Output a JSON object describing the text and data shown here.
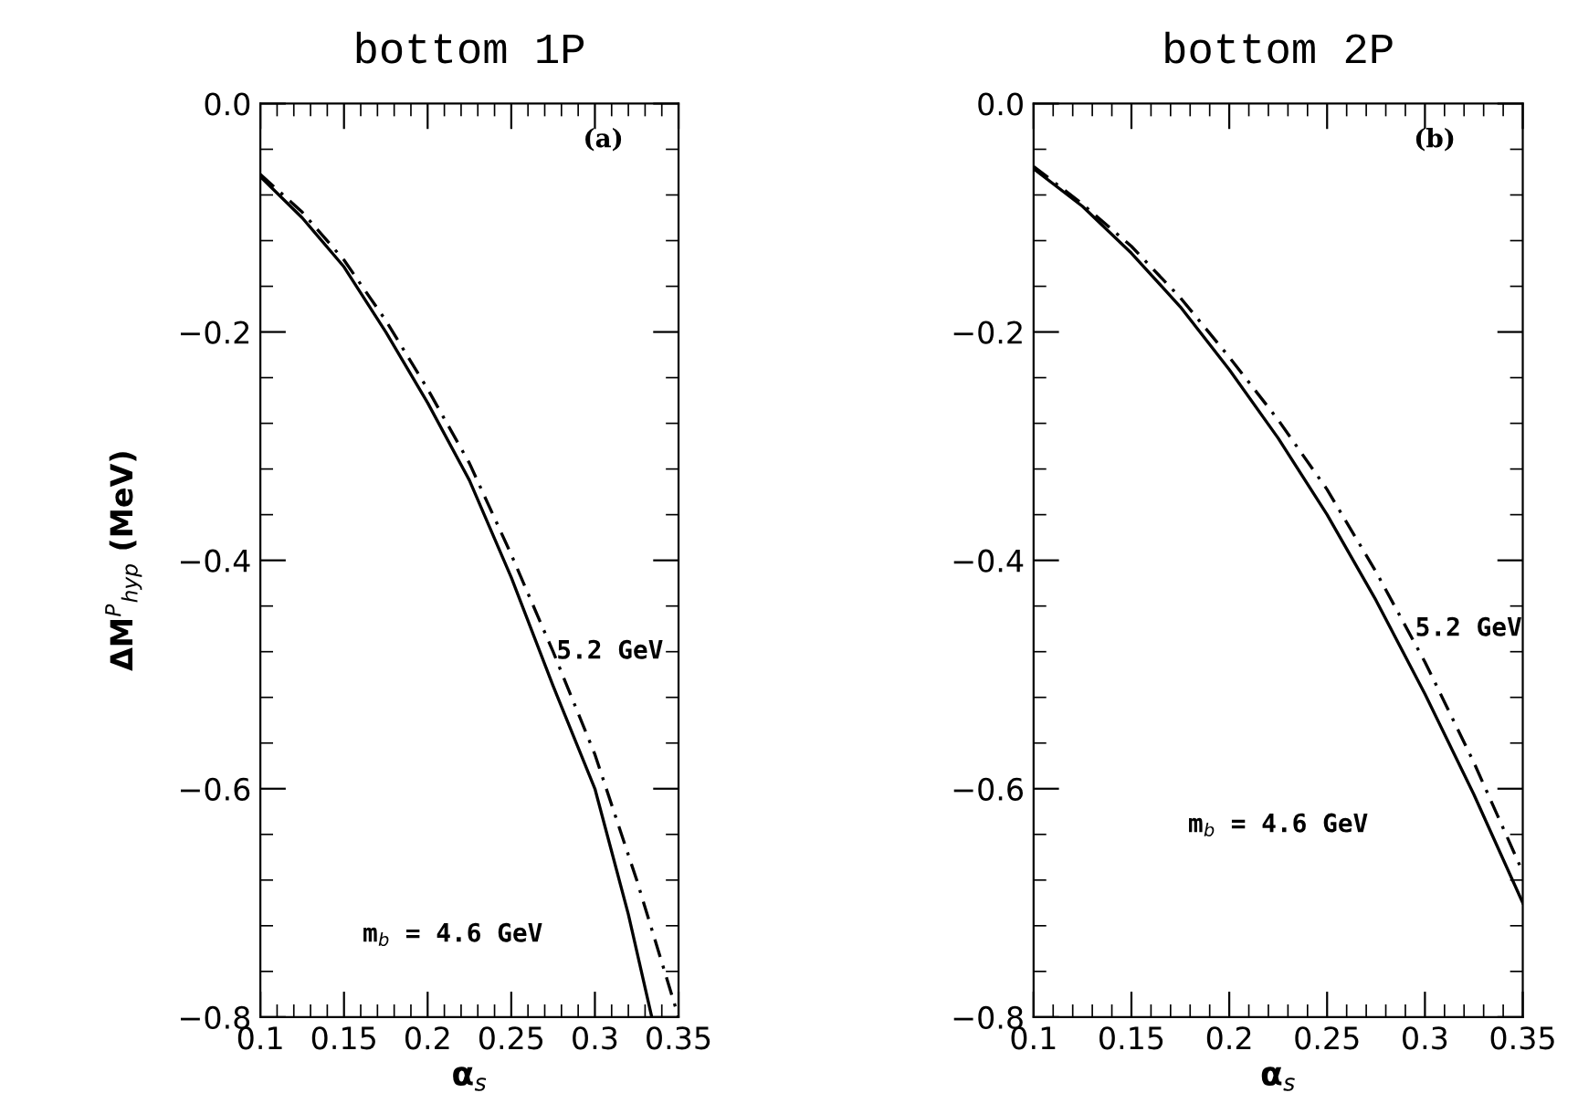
{
  "chart_data": [
    {
      "type": "line",
      "title": "bottom 1P",
      "xlabel": "α$_{s}$",
      "ylabel": "ΔM$^{P}$$_{hyp}$ (MeV)",
      "x": [
        0.1,
        0.125,
        0.15,
        0.175,
        0.2,
        0.225,
        0.25,
        0.275,
        0.3,
        0.31,
        0.32,
        0.334
      ],
      "series": [
        {
          "color": "#000000",
          "line_style": "solid",
          "values": [
            -0.064,
            -0.1,
            -0.143,
            -0.2,
            -0.262,
            -0.33,
            -0.415,
            -0.51,
            -0.6,
            -0.655,
            -0.71,
            -0.8
          ]
        },
        {
          "color": "#000000",
          "line_style": "dashed",
          "x": [
            0.1,
            0.125,
            0.15,
            0.175,
            0.2,
            0.225,
            0.25,
            0.275,
            0.3,
            0.325,
            0.35
          ],
          "values": [
            -0.062,
            -0.095,
            -0.137,
            -0.19,
            -0.25,
            -0.315,
            -0.395,
            -0.48,
            -0.57,
            -0.68,
            -0.8
          ]
        }
      ],
      "xlim": [
        0.1,
        0.35
      ],
      "xticks": [
        0.1,
        0.15,
        0.2,
        0.25,
        0.3,
        0.35
      ],
      "ylim": [
        -0.8,
        0.0
      ],
      "yticks": [
        {
          "value": -0.8,
          "label": "−0.8"
        },
        {
          "value": -0.6,
          "label": "−0.6"
        },
        {
          "value": -0.4,
          "label": "−0.4"
        },
        {
          "value": -0.2,
          "label": "−0.2"
        },
        {
          "value": 0.0,
          "label": "0.0"
        }
      ],
      "grid": false,
      "legend": false,
      "annotations": [
        "(a)",
        {
          "text": "5.2 GeV",
          "x": 0.277,
          "y": -0.48
        },
        "m$_{b}$ = 4.6 GeV"
      ]
    },
    {
      "type": "line",
      "title": "bottom 2P",
      "xlabel": "α$_{s}$",
      "x": [
        0.1,
        0.125,
        0.15,
        0.175,
        0.2,
        0.225,
        0.25,
        0.275,
        0.3,
        0.325,
        0.35
      ],
      "series": [
        {
          "color": "#000000",
          "line_style": "solid",
          "values": [
            -0.057,
            -0.09,
            -0.131,
            -0.178,
            -0.233,
            -0.293,
            -0.36,
            -0.435,
            -0.517,
            -0.605,
            -0.7
          ]
        },
        {
          "color": "#000000",
          "line_style": "dashed",
          "values": [
            -0.055,
            -0.088,
            -0.125,
            -0.17,
            -0.222,
            -0.277,
            -0.338,
            -0.41,
            -0.489,
            -0.577,
            -0.673
          ]
        }
      ],
      "xlim": [
        0.1,
        0.35
      ],
      "xticks": [
        0.1,
        0.15,
        0.2,
        0.25,
        0.3,
        0.35
      ],
      "ylim": [
        -0.8,
        0.0
      ],
      "yticks": [
        {
          "value": -0.8,
          "label": "−0.8"
        },
        {
          "value": -0.6,
          "label": "−0.6"
        },
        {
          "value": -0.4,
          "label": "−0.4"
        },
        {
          "value": -0.2,
          "label": "−0.2"
        },
        {
          "value": 0.0,
          "label": "0.0"
        }
      ],
      "grid": false,
      "legend": false,
      "annotations": [
        "(b)",
        {
          "text": "5.2 GeV",
          "x": 0.295,
          "y": -0.46
        },
        "m$_{b}$ = 4.6 GeV"
      ]
    }
  ]
}
